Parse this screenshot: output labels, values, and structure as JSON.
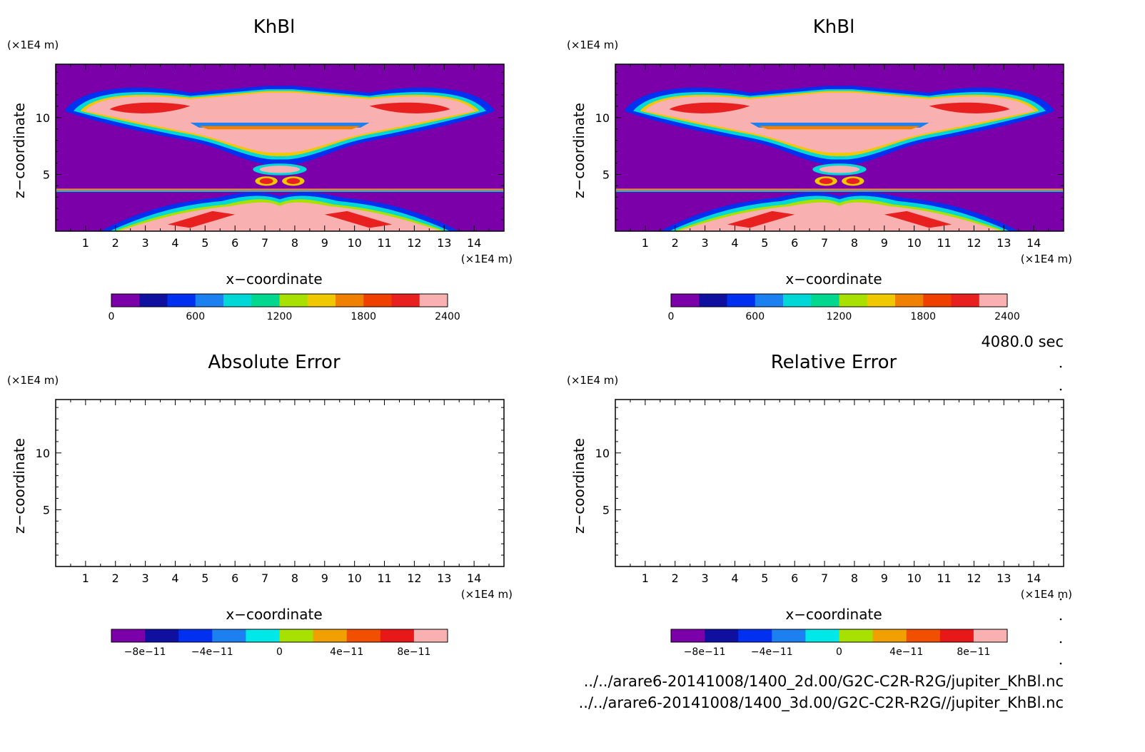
{
  "time_label": "4080.0 sec",
  "file_lines": [
    "../../arare6-20141008/1400_2d.00/G2C-C2R-R2G/jupiter_KhBl.nc",
    "../../arare6-20141008/1400_3d.00/G2C-C2R-R2G//jupiter_KhBl.nc"
  ],
  "chart_data": [
    {
      "type": "heatmap",
      "title": "KhBl",
      "xlabel": "x−coordinate",
      "ylabel": "z−coordinate",
      "x_unit": "(×1E4 m)",
      "y_unit": "(×1E4 m)",
      "xlim": [
        0,
        15
      ],
      "ylim": [
        0,
        14.7
      ],
      "xticks": [
        "1",
        "2",
        "3",
        "4",
        "5",
        "6",
        "7",
        "8",
        "9",
        "10",
        "11",
        "12",
        "13",
        "14"
      ],
      "yticks": [
        "5",
        "10"
      ],
      "colorbar": {
        "range": [
          0,
          2400
        ],
        "labels": [
          "0",
          "600",
          "1200",
          "1800",
          "2400"
        ],
        "colors": [
          "#7b00aa",
          "#1010a0",
          "#0030f0",
          "#1c80f0",
          "#00d8d8",
          "#00d890",
          "#a8e000",
          "#f0c800",
          "#f08000",
          "#f04000",
          "#e82020",
          "#f8b0b0"
        ]
      }
    },
    {
      "type": "heatmap",
      "title": "KhBl",
      "xlabel": "x−coordinate",
      "ylabel": "z−coordinate",
      "x_unit": "(×1E4 m)",
      "y_unit": "(×1E4 m)",
      "xlim": [
        0,
        15
      ],
      "ylim": [
        0,
        14.7
      ],
      "xticks": [
        "1",
        "2",
        "3",
        "4",
        "5",
        "6",
        "7",
        "8",
        "9",
        "10",
        "11",
        "12",
        "13",
        "14"
      ],
      "yticks": [
        "5",
        "10"
      ],
      "colorbar": {
        "range": [
          0,
          2400
        ],
        "labels": [
          "0",
          "600",
          "1200",
          "1800",
          "2400"
        ],
        "colors": [
          "#7b00aa",
          "#1010a0",
          "#0030f0",
          "#1c80f0",
          "#00d8d8",
          "#00d890",
          "#a8e000",
          "#f0c800",
          "#f08000",
          "#f04000",
          "#e82020",
          "#f8b0b0"
        ]
      }
    },
    {
      "type": "heatmap",
      "title": "Absolute Error",
      "xlabel": "x−coordinate",
      "ylabel": "z−coordinate",
      "x_unit": "(×1E4 m)",
      "y_unit": "(×1E4 m)",
      "xlim": [
        0,
        15
      ],
      "ylim": [
        0,
        14.7
      ],
      "xticks": [
        "1",
        "2",
        "3",
        "4",
        "5",
        "6",
        "7",
        "8",
        "9",
        "10",
        "11",
        "12",
        "13",
        "14"
      ],
      "yticks": [
        "5",
        "10"
      ],
      "colorbar": {
        "range": [
          -1e-10,
          1e-10
        ],
        "labels": [
          "−8e−11",
          "−4e−11",
          "0",
          "4e−11",
          "8e−11"
        ],
        "colors": [
          "#7b00aa",
          "#1010a0",
          "#0030f0",
          "#1c80f0",
          "#00e8e8",
          "#a8e000",
          "#f0a000",
          "#f05000",
          "#e81818",
          "#f8b0b0"
        ]
      }
    },
    {
      "type": "heatmap",
      "title": "Relative Error",
      "xlabel": "x−coordinate",
      "ylabel": "z−coordinate",
      "x_unit": "(×1E4 m)",
      "y_unit": "(×1E4 m)",
      "xlim": [
        0,
        15
      ],
      "ylim": [
        0,
        14.7
      ],
      "xticks": [
        "1",
        "2",
        "3",
        "4",
        "5",
        "6",
        "7",
        "8",
        "9",
        "10",
        "11",
        "12",
        "13",
        "14"
      ],
      "yticks": [
        "5",
        "10"
      ],
      "colorbar": {
        "range": [
          -1e-10,
          1e-10
        ],
        "labels": [
          "−8e−11",
          "−4e−11",
          "0",
          "4e−11",
          "8e−11"
        ],
        "colors": [
          "#7b00aa",
          "#1010a0",
          "#0030f0",
          "#1c80f0",
          "#00e8e8",
          "#a8e000",
          "#f0a000",
          "#f05000",
          "#e81818",
          "#f8b0b0"
        ]
      }
    }
  ]
}
